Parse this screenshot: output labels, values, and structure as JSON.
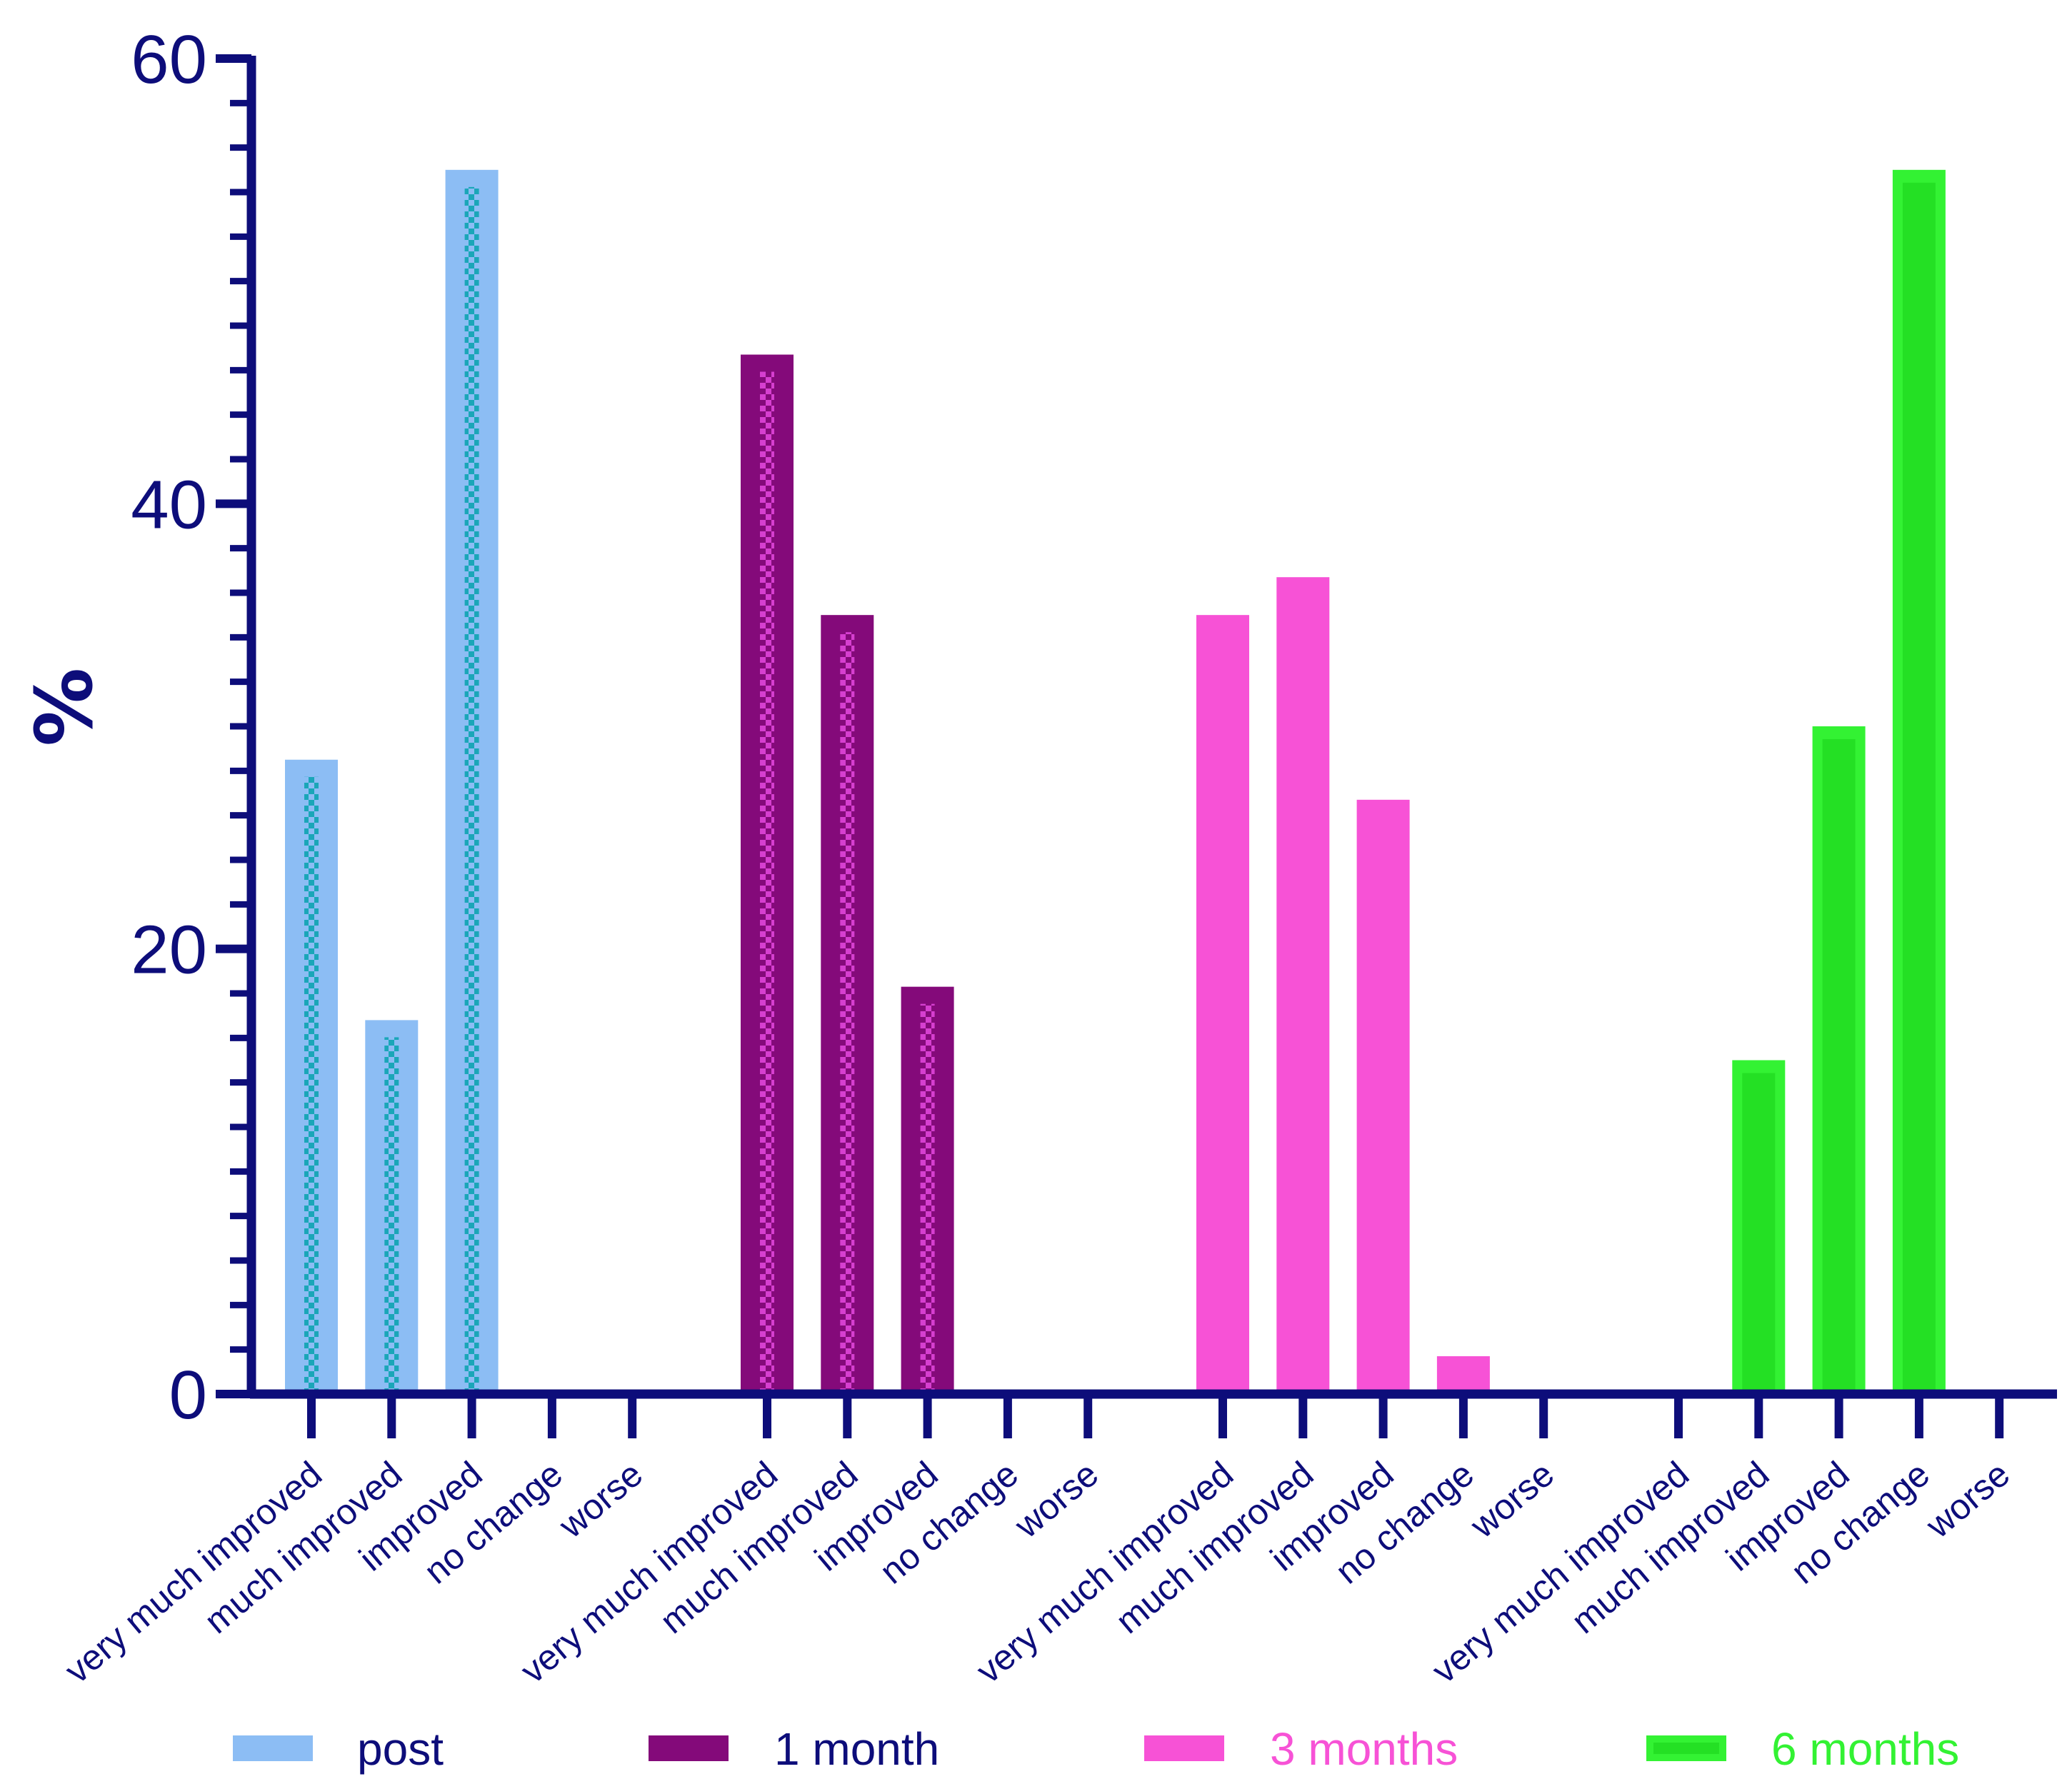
{
  "chart_data": {
    "type": "bar",
    "title": "",
    "xlabel": "",
    "ylabel": "%",
    "ylim": [
      0,
      60
    ],
    "yticks": [
      "0",
      "20",
      "40",
      "60"
    ],
    "grid": false,
    "legend_position": "bottom",
    "categories": [
      "very much improved",
      "much improved",
      "improved",
      "no change",
      "worse"
    ],
    "series": [
      {
        "name": "post",
        "color": "#8cbdf4",
        "pattern_color": "#1aa6b8",
        "pattern": "checker",
        "values": [
          28.5,
          16.8,
          55.0,
          0,
          0
        ]
      },
      {
        "name": "1 month",
        "color": "#840a7a",
        "pattern_color": "#d63fd0",
        "pattern": "checker",
        "values": [
          46.7,
          35.0,
          18.3,
          0,
          0
        ]
      },
      {
        "name": "3 months",
        "color": "#f752d6",
        "pattern_color": "#f752d6",
        "pattern": "solid",
        "values": [
          35.0,
          36.7,
          26.7,
          1.7,
          0
        ]
      },
      {
        "name": "6 months",
        "color": "#33f233",
        "pattern_color": "#22dd22",
        "pattern": "outline",
        "values": [
          0,
          15.0,
          30.0,
          55.0,
          0
        ]
      }
    ],
    "axis_color": "#0d0d7a"
  }
}
